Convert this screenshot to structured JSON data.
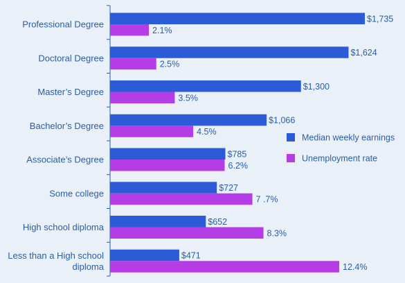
{
  "colors": {
    "background": "#e9f0f7",
    "text": "#2a5ea4",
    "axis": "#2a5ea4",
    "earnings_bar": "#2d5bd8",
    "unemployment_bar": "#b43de6"
  },
  "chart_data": {
    "type": "bar",
    "orientation": "horizontal",
    "title": "",
    "xlabel": "",
    "ylabel": "",
    "categories": [
      "Professional Degree",
      "Doctoral Degree",
      "Master’s Degree",
      "Bachelor’s Degree",
      "Associate’s Degree",
      "Some college",
      "High school diploma",
      "Less than a High school diploma"
    ],
    "series": [
      {
        "name": "Median weekly earnings",
        "values": [
          1735,
          1624,
          1300,
          1066,
          785,
          727,
          652,
          471
        ],
        "labels": [
          "$1,735",
          "$1,624",
          "$1,300",
          "$1,066",
          "$785",
          "$727",
          "$652",
          "$471"
        ],
        "color": "#2d5bd8"
      },
      {
        "name": "Unemployment rate",
        "values": [
          2.1,
          2.5,
          3.5,
          4.5,
          6.2,
          7.7,
          8.3,
          12.4
        ],
        "labels": [
          "2.1%",
          "2.5%",
          "3.5%",
          "4.5%",
          "6.2%",
          "7 .7%",
          "8.3%",
          "12.4%"
        ],
        "color": "#b43de6"
      }
    ],
    "legend_position": "right",
    "grid": false
  }
}
